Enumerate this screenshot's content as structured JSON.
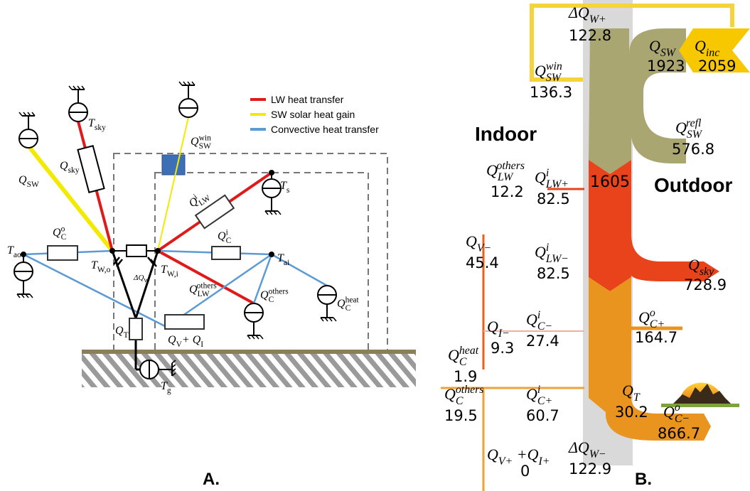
{
  "panel_a": {
    "caption": "A.",
    "legend": [
      "LW heat transfer",
      "SW solar heat gain",
      "Convective heat transfer"
    ],
    "labels": [
      {
        "parts": [
          {
            "text": "Q"
          },
          {
            "sub": "SW"
          }
        ]
      },
      {
        "parts": [
          {
            "text": "Q"
          },
          {
            "sub": "sky"
          }
        ]
      },
      {
        "parts": [
          {
            "text": "T"
          },
          {
            "sub": "sky"
          }
        ]
      },
      {
        "parts": [
          {
            "text": "Q"
          },
          {
            "sub": "SW"
          },
          {
            "sup": "win"
          }
        ]
      },
      {
        "parts": [
          {
            "text": "Q"
          },
          {
            "sub": "LW"
          },
          {
            "sup": "i"
          }
        ]
      },
      {
        "parts": [
          {
            "text": "T"
          },
          {
            "sub": "s"
          }
        ]
      },
      {
        "parts": [
          {
            "text": "Q"
          },
          {
            "sub": "C"
          },
          {
            "sup": "o"
          }
        ]
      },
      {
        "parts": [
          {
            "text": "Q"
          },
          {
            "sub": "C"
          },
          {
            "sup": "i"
          }
        ]
      },
      {
        "parts": [
          {
            "text": "T"
          },
          {
            "sub": "ao"
          }
        ]
      },
      {
        "parts": [
          {
            "text": "T"
          },
          {
            "sub": "W,o"
          }
        ]
      },
      {
        "parts": [
          {
            "text": "T"
          },
          {
            "sub": "W,i"
          }
        ]
      },
      {
        "parts": [
          {
            "text": "ΔQ"
          },
          {
            "sub": "W"
          }
        ]
      },
      {
        "parts": [
          {
            "text": "T"
          },
          {
            "sub": "ai"
          }
        ]
      },
      {
        "parts": [
          {
            "text": "Q"
          },
          {
            "sub": "LW"
          },
          {
            "sup": "others"
          }
        ]
      },
      {
        "parts": [
          {
            "text": "Q"
          },
          {
            "sub": "C"
          },
          {
            "sup": "others"
          }
        ]
      },
      {
        "parts": [
          {
            "text": "Q"
          },
          {
            "sub": "C"
          },
          {
            "sup": "heat"
          }
        ]
      },
      {
        "parts": [
          {
            "text": "Q"
          },
          {
            "sub": "T"
          }
        ]
      },
      {
        "parts": [
          {
            "text": "Q"
          },
          {
            "sub": "V"
          },
          {
            "text": "+ Q"
          },
          {
            "sub": "I"
          }
        ]
      },
      {
        "parts": [
          {
            "text": "T"
          },
          {
            "sub": "g"
          }
        ]
      }
    ]
  },
  "panel_b": {
    "caption": "B.",
    "regions": [
      "Indoor",
      "Outdoor"
    ],
    "total": 1605,
    "flows": [
      {
        "parts": [
          {
            "text": "ΔQ"
          },
          {
            "sub": "W+"
          }
        ],
        "value": 122.8
      },
      {
        "parts": [
          {
            "text": "Q"
          },
          {
            "sub": "SW"
          }
        ],
        "value": 1923
      },
      {
        "parts": [
          {
            "text": "Q"
          },
          {
            "sub": "inc"
          }
        ],
        "value": 2059
      },
      {
        "parts": [
          {
            "text": "Q"
          },
          {
            "sub": "SW"
          },
          {
            "sup": "win"
          }
        ],
        "value": 136.3
      },
      {
        "parts": [
          {
            "text": "Q"
          },
          {
            "sub": "SW"
          },
          {
            "sup": "refl"
          }
        ],
        "value": 576.8
      },
      {
        "parts": [
          {
            "text": "Q"
          },
          {
            "sub": "LW"
          },
          {
            "sup": "others"
          }
        ],
        "value": 12.2
      },
      {
        "parts": [
          {
            "text": "Q"
          },
          {
            "sub": "LW+"
          },
          {
            "sup": "i"
          }
        ],
        "value": 82.5
      },
      {
        "parts": [
          {
            "text": "Q"
          },
          {
            "sub": "V−"
          }
        ],
        "value": 45.4
      },
      {
        "parts": [
          {
            "text": "Q"
          },
          {
            "sub": "LW−"
          },
          {
            "sup": "i"
          }
        ],
        "value": 82.5
      },
      {
        "parts": [
          {
            "text": "Q"
          },
          {
            "sub": "sky"
          }
        ],
        "value": 728.9
      },
      {
        "parts": [
          {
            "text": "Q"
          },
          {
            "sub": "C+"
          },
          {
            "sup": "o"
          }
        ],
        "value": 164.7
      },
      {
        "parts": [
          {
            "text": "Q"
          },
          {
            "sub": "I−"
          }
        ],
        "value": 9.3
      },
      {
        "parts": [
          {
            "text": "Q"
          },
          {
            "sub": "C−"
          },
          {
            "sup": "i"
          }
        ],
        "value": 27.4
      },
      {
        "parts": [
          {
            "text": "Q"
          },
          {
            "sub": "C"
          },
          {
            "sup": "heat"
          }
        ],
        "value": 1.9
      },
      {
        "parts": [
          {
            "text": "Q"
          },
          {
            "sub": "C"
          },
          {
            "sup": "others"
          }
        ],
        "value": 19.5
      },
      {
        "parts": [
          {
            "text": "Q"
          },
          {
            "sub": "C+"
          },
          {
            "sup": "i"
          }
        ],
        "value": 60.7
      },
      {
        "parts": [
          {
            "text": "Q"
          },
          {
            "sub": "T"
          }
        ],
        "value": 30.2
      },
      {
        "parts": [
          {
            "text": "Q"
          },
          {
            "sub": "C−"
          },
          {
            "sup": "o"
          }
        ],
        "value": 866.7
      },
      {
        "parts": [
          {
            "text": "Q"
          },
          {
            "sub": "V+"
          },
          {
            "text": " +Q"
          },
          {
            "sub": "I+"
          }
        ],
        "value": 0
      },
      {
        "parts": [
          {
            "text": "ΔQ"
          },
          {
            "sub": "W−"
          }
        ],
        "value": 122.9
      }
    ]
  }
}
